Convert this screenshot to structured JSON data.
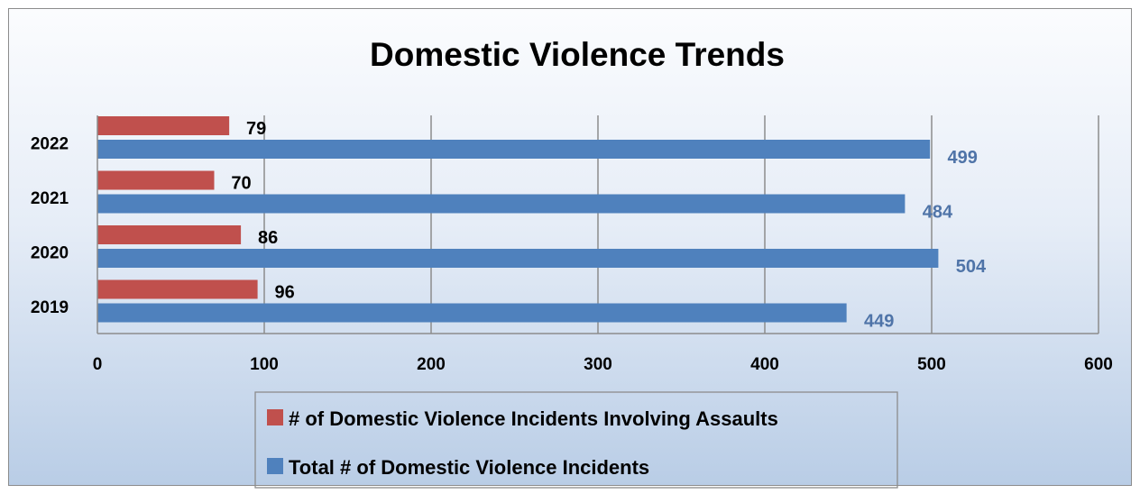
{
  "chart_data": {
    "type": "bar",
    "orientation": "horizontal",
    "title": "Domestic Violence Trends",
    "categories": [
      "2019",
      "2020",
      "2021",
      "2022"
    ],
    "series": [
      {
        "name": "# of Domestic Violence Incidents Involving Assaults",
        "values": [
          96,
          86,
          70,
          79
        ],
        "color": "#c0504d",
        "label_color": "#000000"
      },
      {
        "name": "Total # of Domestic Violence Incidents",
        "values": [
          449,
          504,
          484,
          499
        ],
        "color": "#4f81bd",
        "label_color": "#4f74a8"
      }
    ],
    "xlim": [
      0,
      600
    ],
    "xticks": [
      0,
      100,
      200,
      300,
      400,
      500,
      600
    ],
    "grid": "vertical",
    "legend_position": "bottom"
  }
}
